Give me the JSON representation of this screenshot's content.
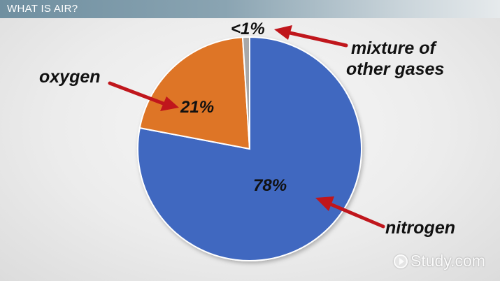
{
  "header": {
    "title": "WHAT IS AIR?"
  },
  "chart_data": {
    "type": "pie",
    "slices": [
      {
        "name": "nitrogen",
        "value": 78,
        "label": "78%",
        "color": "#3f68c0"
      },
      {
        "name": "oxygen",
        "value": 21,
        "label": "21%",
        "color": "#de7428"
      },
      {
        "name": "mixture of other gases",
        "value": 1,
        "label": "<1%",
        "color": "#a8a8a8"
      }
    ],
    "callouts": {
      "nitrogen": "nitrogen",
      "oxygen": "oxygen",
      "other_line1": "mixture of",
      "other_line2": "other gases"
    },
    "arrow_color": "#c0161c"
  },
  "watermark": {
    "text": "Study.com",
    "icon": "play-circle-icon"
  }
}
